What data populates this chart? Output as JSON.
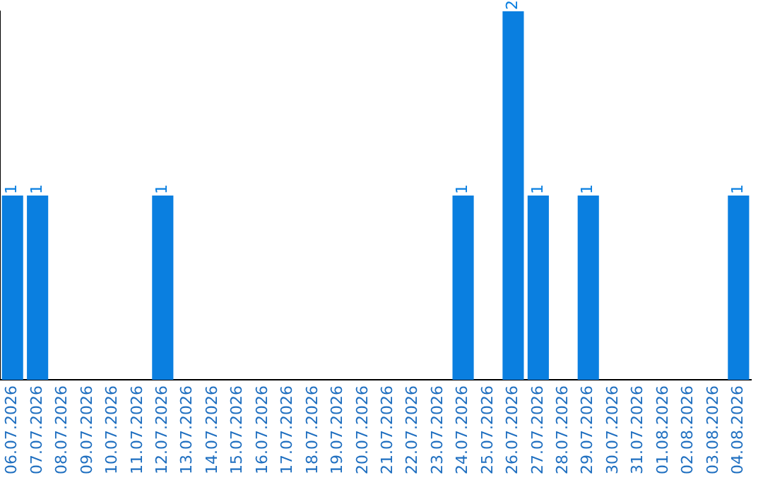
{
  "chart_data": {
    "type": "bar",
    "categories": [
      "06.07.2026",
      "07.07.2026",
      "08.07.2026",
      "09.07.2026",
      "10.07.2026",
      "11.07.2026",
      "12.07.2026",
      "13.07.2026",
      "14.07.2026",
      "15.07.2026",
      "16.07.2026",
      "17.07.2026",
      "18.07.2026",
      "19.07.2026",
      "20.07.2026",
      "21.07.2026",
      "22.07.2026",
      "23.07.2026",
      "24.07.2026",
      "25.07.2026",
      "26.07.2026",
      "27.07.2026",
      "28.07.2026",
      "29.07.2026",
      "30.07.2026",
      "31.07.2026",
      "01.08.2026",
      "02.08.2026",
      "03.08.2026",
      "04.08.2026"
    ],
    "values": [
      1,
      1,
      0,
      0,
      0,
      0,
      1,
      0,
      0,
      0,
      0,
      0,
      0,
      0,
      0,
      0,
      0,
      0,
      1,
      0,
      2,
      1,
      0,
      1,
      0,
      0,
      0,
      0,
      0,
      1
    ],
    "value_labels": [
      "1",
      "1",
      null,
      null,
      null,
      null,
      "1",
      null,
      null,
      null,
      null,
      null,
      null,
      null,
      null,
      null,
      null,
      null,
      "1",
      null,
      "2",
      "1",
      null,
      "1",
      null,
      null,
      null,
      null,
      null,
      "1"
    ],
    "color": "#0a7fe0",
    "tick_labels": "x",
    "grid": false,
    "legend": false
  }
}
